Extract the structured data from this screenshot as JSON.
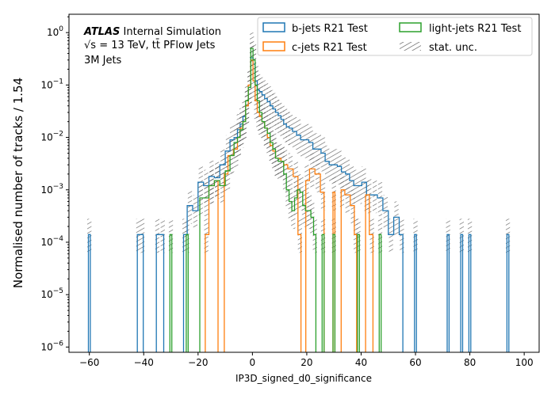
{
  "chart_data": {
    "type": "histogram-step",
    "yscale": "log",
    "xlim": [
      -67.5,
      105.5
    ],
    "ylim_exp": [
      -6.1,
      0.35
    ],
    "xlabel": "IP3D_signed_d0_significance",
    "ylabel": "Normalised number of tracks / 1.54",
    "xticks": [
      -60,
      -40,
      -20,
      0,
      20,
      40,
      60,
      80,
      100
    ],
    "yticks_exp": [
      -6,
      -5,
      -4,
      -3,
      -2,
      -1,
      0
    ],
    "annotation": {
      "line1_bold": "ATLAS",
      "line1_rest": " Internal Simulation",
      "line2": "√s = 13 TeV, tt̄ PFlow Jets",
      "line3": "3M Jets"
    },
    "legend": {
      "placement": "upper-right",
      "entries": [
        {
          "label": "b-jets R21 Test",
          "color": "#1f77b4"
        },
        {
          "label": "c-jets R21 Test",
          "color": "#ff7f0e"
        },
        {
          "label": "light-jets R21 Test",
          "color": "#2ca02c"
        },
        {
          "label": "stat. unc.",
          "hatch": true
        }
      ]
    },
    "series": [
      {
        "name": "b-jets R21 Test",
        "color": "#1f77b4",
        "points": [
          [
            -60,
            0.00014
          ],
          [
            -42,
            0.00014
          ],
          [
            -40.5,
            0.00014
          ],
          [
            -35,
            0.00014
          ],
          [
            -33,
            0.00014
          ],
          [
            -25,
            0.00014
          ],
          [
            -23,
            0.0005
          ],
          [
            -21,
            0.0004
          ],
          [
            -19,
            0.0014
          ],
          [
            -17,
            0.0012
          ],
          [
            -15,
            0.0018
          ],
          [
            -13,
            0.0017
          ],
          [
            -11,
            0.003
          ],
          [
            -9,
            0.0055
          ],
          [
            -7.5,
            0.009
          ],
          [
            -6,
            0.01
          ],
          [
            -5,
            0.014
          ],
          [
            -4,
            0.018
          ],
          [
            -3,
            0.025
          ],
          [
            -2,
            0.04
          ],
          [
            -1,
            0.09
          ],
          [
            -0.2,
            0.33
          ],
          [
            0.6,
            0.25
          ],
          [
            1.4,
            0.12
          ],
          [
            2.2,
            0.08
          ],
          [
            3,
            0.075
          ],
          [
            4,
            0.065
          ],
          [
            5,
            0.055
          ],
          [
            6,
            0.048
          ],
          [
            7,
            0.04
          ],
          [
            8,
            0.035
          ],
          [
            9,
            0.03
          ],
          [
            10,
            0.026
          ],
          [
            11,
            0.022
          ],
          [
            12,
            0.018
          ],
          [
            13,
            0.016
          ],
          [
            14,
            0.015
          ],
          [
            15.5,
            0.013
          ],
          [
            17,
            0.011
          ],
          [
            18.5,
            0.009
          ],
          [
            20,
            0.009
          ],
          [
            21.5,
            0.008
          ],
          [
            23,
            0.006
          ],
          [
            24.5,
            0.006
          ],
          [
            26,
            0.005
          ],
          [
            27.5,
            0.0035
          ],
          [
            29,
            0.003
          ],
          [
            30.5,
            0.003
          ],
          [
            32,
            0.0028
          ],
          [
            33.5,
            0.0022
          ],
          [
            35,
            0.002
          ],
          [
            36.5,
            0.0015
          ],
          [
            38,
            0.0012
          ],
          [
            39.5,
            0.0012
          ],
          [
            41,
            0.0014
          ],
          [
            43,
            0.0008
          ],
          [
            45,
            0.0008
          ],
          [
            47,
            0.0007
          ],
          [
            49,
            0.0004
          ],
          [
            51,
            0.00014
          ],
          [
            53,
            0.0003
          ],
          [
            55,
            0.00014
          ],
          [
            60,
            0.00014
          ],
          [
            72,
            0.00014
          ],
          [
            77,
            0.00014
          ],
          [
            80,
            0.00014
          ],
          [
            94,
            0.00014
          ]
        ]
      },
      {
        "name": "c-jets R21 Test",
        "color": "#ff7f0e",
        "points": [
          [
            -17,
            0.00014
          ],
          [
            -15,
            0.0012
          ],
          [
            -13,
            0.0015
          ],
          [
            -10,
            0.002
          ],
          [
            -8,
            0.0045
          ],
          [
            -6,
            0.006
          ],
          [
            -5,
            0.01
          ],
          [
            -4,
            0.015
          ],
          [
            -3,
            0.02
          ],
          [
            -2,
            0.04
          ],
          [
            -1,
            0.1
          ],
          [
            -0.2,
            0.3
          ],
          [
            0.6,
            0.12
          ],
          [
            1.4,
            0.05
          ],
          [
            2.2,
            0.03
          ],
          [
            3,
            0.025
          ],
          [
            4,
            0.02
          ],
          [
            5,
            0.015
          ],
          [
            6,
            0.01
          ],
          [
            7,
            0.007
          ],
          [
            8,
            0.0055
          ],
          [
            9,
            0.004
          ],
          [
            10,
            0.004
          ],
          [
            11,
            0.0035
          ],
          [
            12,
            0.003
          ],
          [
            14,
            0.0025
          ],
          [
            16,
            0.0018
          ],
          [
            17.5,
            0.00014
          ],
          [
            20,
            0.0015
          ],
          [
            22,
            0.0025
          ],
          [
            24,
            0.002
          ],
          [
            26,
            0.0009
          ],
          [
            30,
            0.0009
          ],
          [
            33,
            0.001
          ],
          [
            35,
            0.0008
          ],
          [
            37,
            0.0005
          ],
          [
            38,
            0.00014
          ],
          [
            42,
            0.0008
          ],
          [
            44,
            0.00014
          ]
        ]
      },
      {
        "name": "light-jets R21 Test",
        "color": "#2ca02c",
        "points": [
          [
            -30,
            0.00014
          ],
          [
            -24,
            0.00014
          ],
          [
            -19,
            0.0007
          ],
          [
            -17,
            0.0007
          ],
          [
            -15,
            0.0012
          ],
          [
            -13,
            0.0015
          ],
          [
            -11,
            0.0012
          ],
          [
            -9,
            0.0023
          ],
          [
            -7.5,
            0.0045
          ],
          [
            -6,
            0.008
          ],
          [
            -5,
            0.01
          ],
          [
            -4,
            0.014
          ],
          [
            -3,
            0.02
          ],
          [
            -2,
            0.05
          ],
          [
            -1,
            0.09
          ],
          [
            -0.2,
            0.5
          ],
          [
            0.6,
            0.3
          ],
          [
            1.4,
            0.1
          ],
          [
            2.2,
            0.05
          ],
          [
            3,
            0.03
          ],
          [
            4,
            0.02
          ],
          [
            5,
            0.015
          ],
          [
            6,
            0.012
          ],
          [
            7,
            0.008
          ],
          [
            8,
            0.006
          ],
          [
            9,
            0.004
          ],
          [
            10,
            0.0035
          ],
          [
            11,
            0.0035
          ],
          [
            12,
            0.002
          ],
          [
            13,
            0.001
          ],
          [
            14,
            0.0006
          ],
          [
            15,
            0.0004
          ],
          [
            16,
            0.0007
          ],
          [
            17,
            0.001
          ],
          [
            18,
            0.0009
          ],
          [
            19,
            0.0005
          ],
          [
            20,
            0.0004
          ],
          [
            21,
            0.0004
          ],
          [
            22,
            0.0003
          ],
          [
            23,
            0.00014
          ],
          [
            26,
            0.00014
          ],
          [
            30,
            0.00014
          ],
          [
            39,
            0.00014
          ],
          [
            47,
            0.00014
          ]
        ]
      }
    ]
  }
}
